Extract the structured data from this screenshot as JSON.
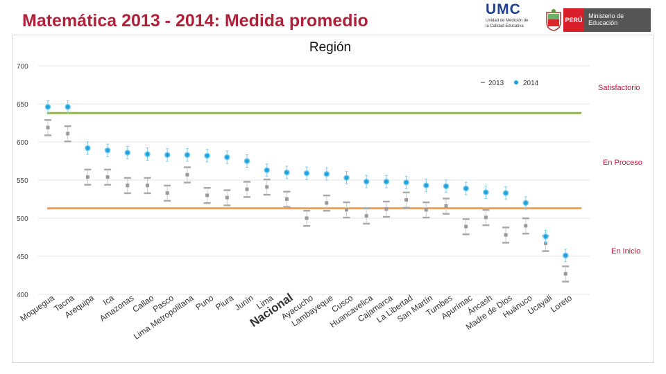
{
  "header": {
    "title": "Matemática 2013 - 2014: Medida promedio",
    "logo_umc": "UMC",
    "logo_umc_sub": "Unidad de Medición de la Calidad Educativa",
    "logo_peru": "PERÚ",
    "logo_ministerio": "Ministerio de Educación"
  },
  "colors": {
    "title": "#b0213a",
    "series_2013": "#9a9a9a",
    "series_2014": "#1fa3dc",
    "line_satisfactorio": "#92b455",
    "line_inicio": "#f0a050",
    "level_label": "#c0163b"
  },
  "chart_data": {
    "type": "scatter",
    "title": "Región",
    "ylim": [
      400,
      700
    ],
    "yticks": [
      400,
      450,
      500,
      550,
      600,
      650,
      700
    ],
    "legend": [
      "2013",
      "2014"
    ],
    "legend_position": "top-right",
    "categories": [
      "Moquegua",
      "Tacna",
      "Arequipa",
      "Ica",
      "Amazonas",
      "Callao",
      "Pasco",
      "Lima Metropolitana",
      "Puno",
      "Piura",
      "Junín",
      "Lima",
      "Nacional",
      "Ayacucho",
      "Lambayeque",
      "Cusco",
      "Huancavelica",
      "Cajamarca",
      "La Libertad",
      "San Martín",
      "Tumbes",
      "Apurímac",
      "Áncash",
      "Madre de Dios",
      "Huánuco",
      "Ucayali",
      "Loreto"
    ],
    "series": [
      {
        "name": "2013",
        "values": [
          619,
          611,
          554,
          554,
          543,
          543,
          533,
          557,
          530,
          527,
          538,
          541,
          525,
          500,
          520,
          511,
          503,
          512,
          524,
          511,
          516,
          489,
          501,
          478,
          490,
          467,
          427
        ]
      },
      {
        "name": "2014",
        "values": [
          646,
          646,
          592,
          589,
          586,
          584,
          583,
          583,
          582,
          580,
          575,
          563,
          560,
          559,
          558,
          553,
          548,
          548,
          547,
          543,
          542,
          539,
          534,
          533,
          520,
          476,
          451
        ]
      }
    ],
    "reference_lines": [
      {
        "label": "Satisfactorio",
        "value": 638
      },
      {
        "label": "En Inicio",
        "value": 513
      }
    ],
    "level_labels": [
      "Satisfactorio",
      "En Proceso",
      "En Inicio"
    ]
  }
}
